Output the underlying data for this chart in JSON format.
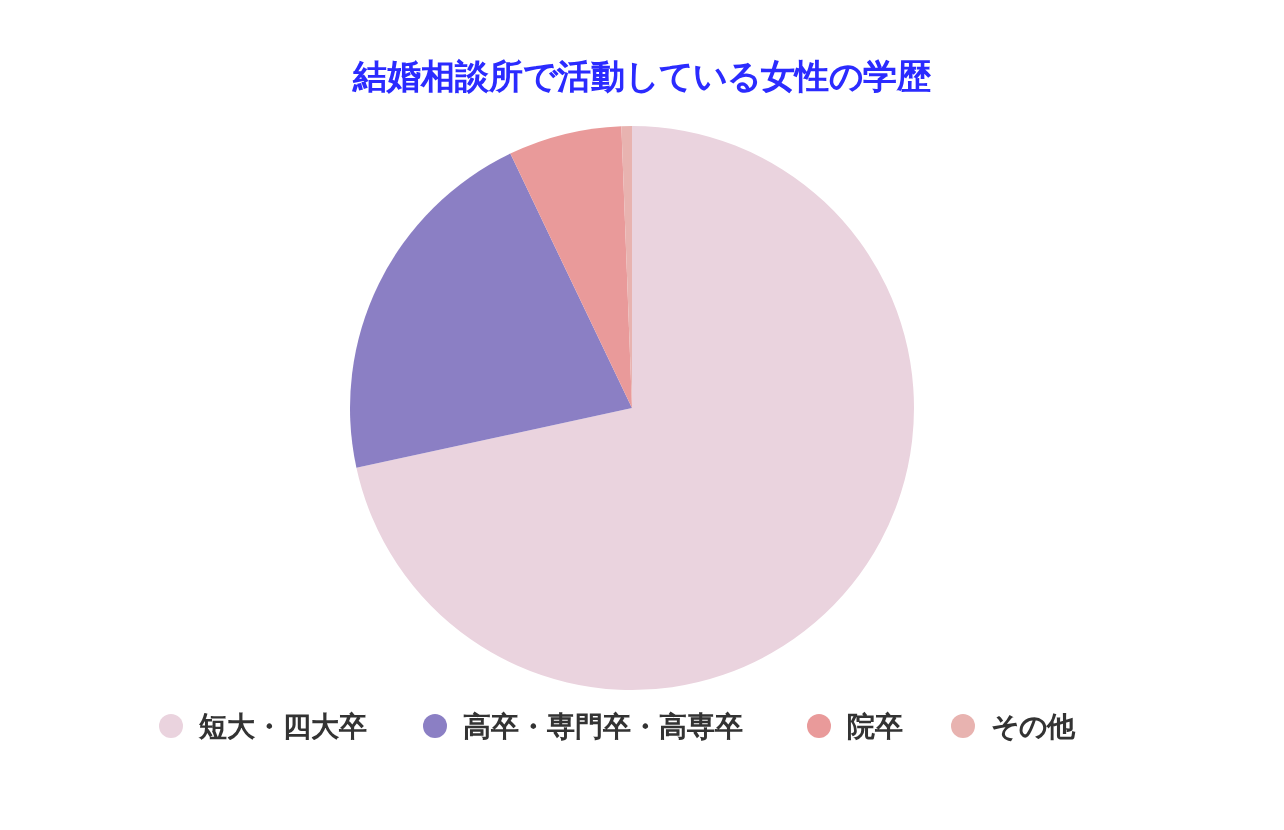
{
  "chart_data": {
    "type": "pie",
    "title": "結婚相談所で活動している女性の学歴",
    "categories": [
      "短大・四大卒",
      "高卒・専門卒・高専卒",
      "院卒",
      "その他"
    ],
    "values": [
      71.6,
      21.3,
      6.5,
      0.6
    ],
    "colors": [
      "#ead3de",
      "#8b7fc4",
      "#e99a9a",
      "#e8b3b0"
    ],
    "legend": "bottom"
  }
}
